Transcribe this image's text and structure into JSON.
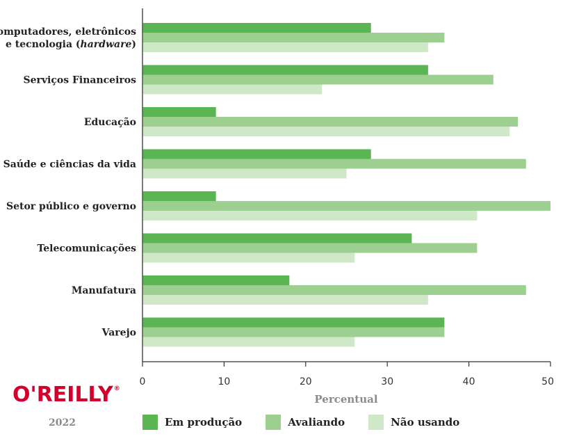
{
  "chart_data": {
    "type": "bar",
    "orientation": "horizontal",
    "categories": [
      "Computadores, eletrônicos e tecnologia (hardware)",
      "Serviços Financeiros",
      "Educação",
      "Saúde e ciências da vida",
      "Setor público e governo",
      "Telecomunicações",
      "Manufatura",
      "Varejo"
    ],
    "category_lines": [
      [
        "Computadores, eletrônicos",
        "e tecnologia (hardware)"
      ],
      [
        "Serviços Financeiros"
      ],
      [
        "Educação"
      ],
      [
        "Saúde e ciências da vida"
      ],
      [
        "Setor público e governo"
      ],
      [
        "Telecomunicações"
      ],
      [
        "Manufatura"
      ],
      [
        "Varejo"
      ]
    ],
    "series": [
      {
        "name": "Em produção",
        "color": "#5ab552",
        "values": [
          28,
          35,
          9,
          28,
          9,
          33,
          18,
          37
        ]
      },
      {
        "name": "Avaliando",
        "color": "#9dd090",
        "values": [
          37,
          43,
          46,
          47,
          50,
          41,
          47,
          37
        ]
      },
      {
        "name": "Não usando",
        "color": "#cfe9c8",
        "values": [
          35,
          22,
          45,
          25,
          41,
          26,
          35,
          26
        ]
      }
    ],
    "xlabel": "Percentual",
    "ylabel": "",
    "xlim": [
      0,
      50
    ],
    "xticks": [
      0,
      10,
      20,
      30,
      40,
      50
    ],
    "grid": false,
    "legend_placement": "bottom"
  },
  "branding": {
    "logo_text": "O'REILLY",
    "logo_mark": "®",
    "logo_color": "#d3002d",
    "year": "2022"
  }
}
